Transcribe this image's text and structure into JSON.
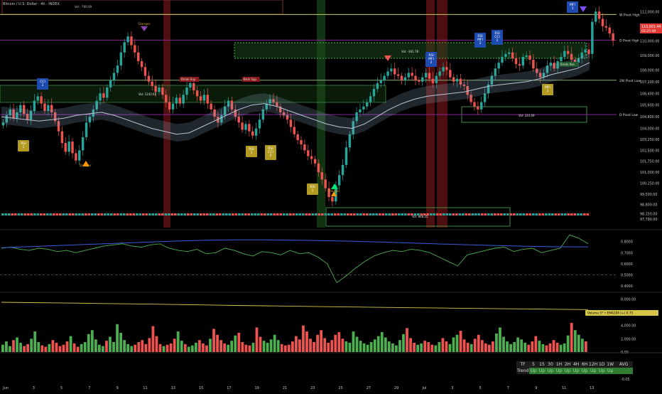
{
  "header": {
    "symbol_title": "Bitcoin / U.S. Dollar · 4h · INDEX",
    "top_vol_label": "Vol: -760.09"
  },
  "colors": {
    "up": "#26a69a",
    "down": "#ef5350",
    "ma_fast": "#b8c4d6",
    "resistance_purple": "#9c27b0",
    "weekly_pivot": "#c9c96b",
    "zone_green": "#4caf50",
    "signal_blue": "#1e4bb0",
    "signal_olive": "#c9a227",
    "volume_up": "#4caf50",
    "volume_down": "#ef5350"
  },
  "chart_data": [
    {
      "type": "candlestick",
      "title": "Bitcoin / U.S. Dollar · 4h · INDEX",
      "x_tick_labels": [
        "Jun",
        "3",
        "5",
        "7",
        "9",
        "11",
        "13",
        "15",
        "17",
        "19",
        "21",
        "23",
        "25",
        "27",
        "29",
        "Jul",
        "3",
        "5",
        "7",
        "9",
        "11",
        "13"
      ],
      "y_tick_labels": [
        "112,000.00",
        "111,000.00",
        "110,000.00",
        "109,000.00",
        "108,000.00",
        "107,200.00",
        "106,400.00",
        "105,600.00",
        "104,800.00",
        "104,000.00",
        "103,250.00",
        "102,500.00",
        "101,750.00",
        "101,000.00",
        "100,250.00",
        "99,500.00",
        "98,800.00",
        "98,150.00",
        "97,790.00"
      ],
      "ylim": [
        97500,
        112500
      ],
      "price_levels": [
        {
          "label": "W Pivot High",
          "value": 111800
        },
        {
          "label": "D Pivot High",
          "value": 110050
        },
        {
          "label": "2W Pivot Low",
          "value": 107300
        },
        {
          "label": "D Pivot Low",
          "value": 104950
        }
      ],
      "current_price_badge": {
        "price": "110,001.44",
        "countdown": "02:25:49"
      },
      "candles_close": [
        104400,
        104900,
        105300,
        104700,
        105100,
        105600,
        105000,
        104600,
        105200,
        105900,
        106200,
        105700,
        105200,
        105600,
        105100,
        104500,
        103800,
        103000,
        102400,
        103100,
        102300,
        101800,
        102500,
        103400,
        104400,
        104800,
        105300,
        105900,
        106400,
        106100,
        106800,
        107300,
        107800,
        108300,
        109200,
        109900,
        110300,
        109700,
        109200,
        108600,
        108200,
        107600,
        107200,
        106900,
        106500,
        106800,
        106300,
        105800,
        105300,
        105700,
        106100,
        105700,
        106300,
        106800,
        107100,
        106600,
        106200,
        105900,
        106300,
        105700,
        105300,
        104800,
        104400,
        104900,
        105500,
        105900,
        105300,
        104800,
        104400,
        103900,
        104300,
        103800,
        103500,
        104000,
        104600,
        105300,
        105700,
        106000,
        105800,
        105500,
        105100,
        104900,
        104600,
        104100,
        103600,
        103200,
        102900,
        102500,
        102100,
        101900,
        101600,
        101000,
        100500,
        99900,
        99300,
        99000,
        100100,
        100800,
        101500,
        102700,
        103600,
        104500,
        105100,
        105300,
        105500,
        105800,
        106200,
        106700,
        107100,
        107300,
        107600,
        107900,
        108100,
        107700,
        107600,
        107300,
        107500,
        107800,
        107600,
        107300,
        107200,
        107500,
        107800,
        107400,
        107100,
        107600,
        107900,
        108200,
        108000,
        107500,
        107200,
        107400,
        107000,
        106900,
        106300,
        105800,
        105500,
        105300,
        105800,
        106400,
        107000,
        107600,
        108100,
        108500,
        108900,
        109100,
        109200,
        108800,
        108400,
        108300,
        108900,
        109000,
        108700,
        108100,
        107800,
        107500,
        107800,
        108300,
        108500,
        108100,
        108600,
        108900,
        109300,
        109100,
        108700,
        108500,
        108800,
        109200,
        109400,
        109100,
        111300,
        112000,
        111500,
        111000,
        110900,
        110500,
        110000
      ],
      "moving_average_line": [
        104800,
        104700,
        104600,
        104500,
        104600,
        104700,
        104900,
        105000,
        105100,
        104900,
        104600,
        104300,
        104000,
        103800,
        103600,
        103700,
        104100,
        104500,
        104900,
        105300,
        105600,
        105700,
        105500,
        105200,
        104900,
        104600,
        104300,
        104100,
        104000,
        104300,
        104800,
        105300,
        105700,
        106000,
        106200,
        106300,
        106400,
        106500,
        106700,
        106900,
        107000,
        107100,
        107200,
        107400,
        107700,
        107900,
        108100,
        108500
      ],
      "signal_labels": [
        "CCI 1",
        "RSI 1",
        "Danger",
        "Danger",
        "RSI 1",
        "RSI CCI 2",
        "RSI 1",
        "Danger",
        "RSI MFI 2",
        "RSI MFI 2",
        "RSI CCI 2",
        "MFI 1",
        "MFI 1"
      ],
      "zone_labels": [
        "Break Sup",
        "Brok Sup",
        "Break Res",
        "Vol: 1242.65",
        "Vol: -361.78",
        "Vol: 333.09",
        "Vol: 848.25"
      ]
    },
    {
      "type": "line",
      "y_tick_labels": [
        "0.8000",
        "0.7000",
        "0.6000",
        "0.5000",
        "0.4000"
      ],
      "ylim": [
        0.35,
        0.9
      ],
      "reference_line": 0.5,
      "series": [
        {
          "values": [
            0.74,
            0.75,
            0.73,
            0.72,
            0.74,
            0.73,
            0.71,
            0.72,
            0.7,
            0.72,
            0.74,
            0.76,
            0.77,
            0.78,
            0.76,
            0.75,
            0.77,
            0.78,
            0.74,
            0.72,
            0.71,
            0.73,
            0.69,
            0.7,
            0.74,
            0.72,
            0.69,
            0.67,
            0.71,
            0.7,
            0.68,
            0.72,
            0.69,
            0.7,
            0.66,
            0.6,
            0.43,
            0.49,
            0.56,
            0.62,
            0.67,
            0.7,
            0.72,
            0.71,
            0.73,
            0.72,
            0.7,
            0.66,
            0.62,
            0.58,
            0.68,
            0.7,
            0.72,
            0.74,
            0.75,
            0.71,
            0.73,
            0.74,
            0.7,
            0.72,
            0.74,
            0.86,
            0.83,
            0.78
          ]
        },
        {
          "values": [
            0.745,
            0.755,
            0.765,
            0.775,
            0.785,
            0.795,
            0.805,
            0.812,
            0.815,
            0.815,
            0.812,
            0.808,
            0.802,
            0.795,
            0.787,
            0.778,
            0.77,
            0.763,
            0.757,
            0.753,
            0.752
          ]
        }
      ]
    },
    {
      "type": "bar",
      "title": "Volume 5 · EMA200",
      "legend_text": "Volume 5* • EMA200 (+) 0.75",
      "y_tick_labels": [
        "8,000.00",
        "6,000.00",
        "4,000.00",
        "2,000.00",
        "0.00"
      ],
      "ylim": [
        0,
        9000
      ],
      "volume_values": [
        1100,
        1600,
        900,
        1800,
        2200,
        1400,
        900,
        1200,
        2000,
        3100,
        1500,
        1000,
        800,
        1200,
        1800,
        1400,
        900,
        1100,
        1600,
        2400,
        1300,
        800,
        1200,
        1500,
        2700,
        3300,
        1900,
        1100,
        900,
        1700,
        2300,
        1500,
        4200,
        2900,
        1800,
        1200,
        900,
        1100,
        1500,
        1800,
        1200,
        2100,
        3900,
        2400,
        1200,
        900,
        1100,
        1300,
        2000,
        3100,
        1700,
        1200,
        800,
        1000,
        1400,
        1800,
        1300,
        1000,
        2000,
        3500,
        2600,
        1800,
        1300,
        1100,
        1700,
        2500,
        2900,
        1500,
        1100,
        1000,
        1400,
        3700,
        2300,
        1700,
        1400,
        1900,
        2600,
        1800,
        1200,
        1000,
        1100,
        1600,
        2400,
        1900,
        4000,
        3100,
        2000,
        1500,
        2600,
        3300,
        2100,
        1400,
        1800,
        2600,
        3000,
        2000,
        1600,
        1400,
        3100,
        2300,
        1700,
        1300,
        1100,
        1500,
        1900,
        2400,
        3000,
        2200,
        1600,
        1300,
        1000,
        1800,
        2700,
        3600,
        2100,
        1400,
        1100,
        1300,
        1700,
        1500,
        1100,
        1000,
        1500,
        2100,
        1600,
        1200,
        2200,
        2600,
        3200,
        1900,
        1400,
        1200,
        2000,
        2600,
        1800,
        1300,
        1100,
        1600,
        2800,
        3700,
        2300,
        1600,
        1200,
        1500,
        2200,
        1900,
        1400,
        1100,
        1600,
        2400,
        1700,
        1200,
        1000,
        1300,
        1800,
        1400,
        1100,
        1300,
        2500,
        4400,
        3300,
        2600,
        2000,
        1600
      ],
      "ema_values": [
        7500,
        7450,
        7400,
        7340,
        7280,
        7220,
        7160,
        7090,
        7020,
        6960,
        6900,
        6840,
        6780,
        6730,
        6680,
        6630,
        6580,
        6530,
        6490,
        6440,
        6400
      ]
    },
    {
      "type": "line",
      "y_tick_labels": [
        "0.00",
        "-0.05"
      ],
      "series": []
    }
  ],
  "trend_table": {
    "tf_label": "TF",
    "timeframes": [
      "5",
      "15",
      "30",
      "1H",
      "2H",
      "4H",
      "6H",
      "12H",
      "1D",
      "1W"
    ],
    "avg_label": "AVG",
    "row_label": "Trend",
    "values": [
      "Up",
      "Up",
      "Up",
      "Up",
      "Up",
      "Up",
      "Up",
      "Up",
      "Up",
      "Up"
    ],
    "avg_value": ""
  }
}
